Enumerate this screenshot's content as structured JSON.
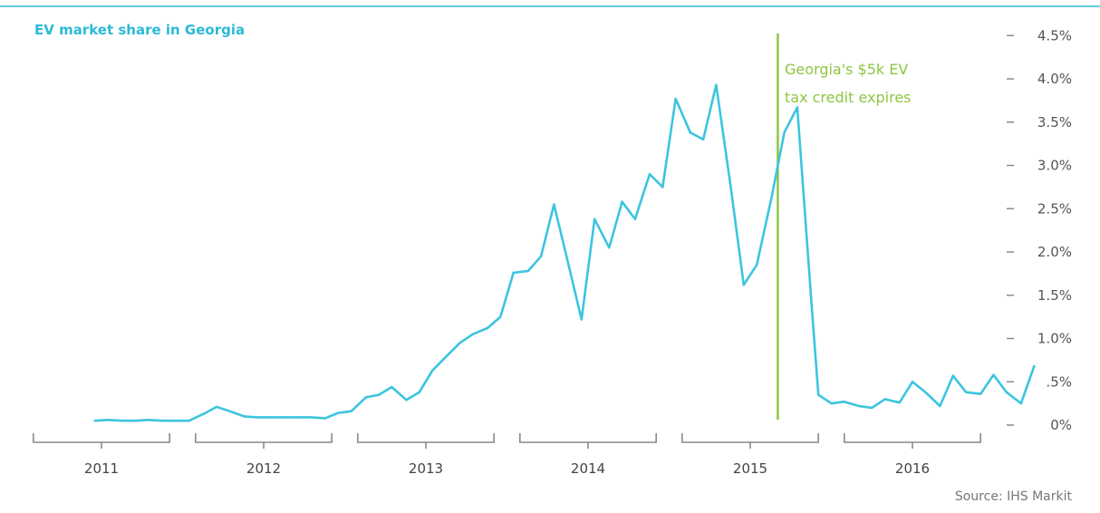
{
  "chart_data": {
    "type": "line",
    "title": "EV market share in Georgia",
    "source": "Source: IHS Markit",
    "annotation": {
      "lines": [
        "Georgia's $5k EV",
        "tax credit expires"
      ],
      "x": 2015.17
    },
    "yticks": [
      {
        "v": 0,
        "label": "0%"
      },
      {
        "v": 0.5,
        "label": ".5%"
      },
      {
        "v": 1.0,
        "label": "1.0%"
      },
      {
        "v": 1.5,
        "label": "1.5%"
      },
      {
        "v": 2.0,
        "label": "2.0%"
      },
      {
        "v": 2.5,
        "label": "2.5%"
      },
      {
        "v": 3.0,
        "label": "3.0%"
      },
      {
        "v": 3.5,
        "label": "3.5%"
      },
      {
        "v": 4.0,
        "label": "4.0%"
      },
      {
        "v": 4.5,
        "label": "4.5%"
      }
    ],
    "ylim": [
      0,
      4.5
    ],
    "years": [
      "2011",
      "2012",
      "2013",
      "2014",
      "2015",
      "2016"
    ],
    "xlim": [
      2011,
      2017
    ],
    "colors": {
      "line": "#3cc5de",
      "annotation": "#8dc641",
      "title": "#2db9d6",
      "axis": "#8a8a8a",
      "rule": "#2db9d6"
    },
    "series": [
      {
        "values": [
          [
            2010.96,
            0.05
          ],
          [
            2011.04,
            0.06
          ],
          [
            2011.13,
            0.05
          ],
          [
            2011.21,
            0.05
          ],
          [
            2011.29,
            0.06
          ],
          [
            2011.38,
            0.05
          ],
          [
            2011.46,
            0.05
          ],
          [
            2011.54,
            0.05
          ],
          [
            2011.63,
            0.13
          ],
          [
            2011.71,
            0.21
          ],
          [
            2011.79,
            0.16
          ],
          [
            2011.88,
            0.1
          ],
          [
            2011.96,
            0.09
          ],
          [
            2012.04,
            0.09
          ],
          [
            2012.13,
            0.09
          ],
          [
            2012.21,
            0.09
          ],
          [
            2012.29,
            0.09
          ],
          [
            2012.38,
            0.08
          ],
          [
            2012.46,
            0.14
          ],
          [
            2012.54,
            0.16
          ],
          [
            2012.63,
            0.32
          ],
          [
            2012.71,
            0.35
          ],
          [
            2012.79,
            0.44
          ],
          [
            2012.88,
            0.29
          ],
          [
            2012.96,
            0.38
          ],
          [
            2013.04,
            0.63
          ],
          [
            2013.13,
            0.8
          ],
          [
            2013.21,
            0.95
          ],
          [
            2013.29,
            1.05
          ],
          [
            2013.38,
            1.12
          ],
          [
            2013.46,
            1.25
          ],
          [
            2013.54,
            1.76
          ],
          [
            2013.63,
            1.78
          ],
          [
            2013.71,
            1.95
          ],
          [
            2013.79,
            2.55
          ],
          [
            2013.88,
            1.85
          ],
          [
            2013.96,
            1.22
          ],
          [
            2014.04,
            2.38
          ],
          [
            2014.13,
            2.05
          ],
          [
            2014.21,
            2.58
          ],
          [
            2014.29,
            2.38
          ],
          [
            2014.38,
            2.9
          ],
          [
            2014.46,
            2.75
          ],
          [
            2014.54,
            3.77
          ],
          [
            2014.63,
            3.38
          ],
          [
            2014.71,
            3.3
          ],
          [
            2014.79,
            3.93
          ],
          [
            2014.88,
            2.75
          ],
          [
            2014.96,
            1.62
          ],
          [
            2015.04,
            1.85
          ],
          [
            2015.13,
            2.62
          ],
          [
            2015.21,
            3.38
          ],
          [
            2015.29,
            3.67
          ],
          [
            2015.38,
            1.35
          ],
          [
            2015.42,
            0.35
          ],
          [
            2015.5,
            0.25
          ],
          [
            2015.58,
            0.27
          ],
          [
            2015.67,
            0.22
          ],
          [
            2015.75,
            0.2
          ],
          [
            2015.83,
            0.3
          ],
          [
            2015.92,
            0.26
          ],
          [
            2016.0,
            0.5
          ],
          [
            2016.08,
            0.38
          ],
          [
            2016.17,
            0.22
          ],
          [
            2016.25,
            0.57
          ],
          [
            2016.33,
            0.38
          ],
          [
            2016.42,
            0.36
          ],
          [
            2016.5,
            0.58
          ],
          [
            2016.58,
            0.38
          ],
          [
            2016.67,
            0.25
          ],
          [
            2016.75,
            0.68
          ]
        ]
      }
    ]
  }
}
